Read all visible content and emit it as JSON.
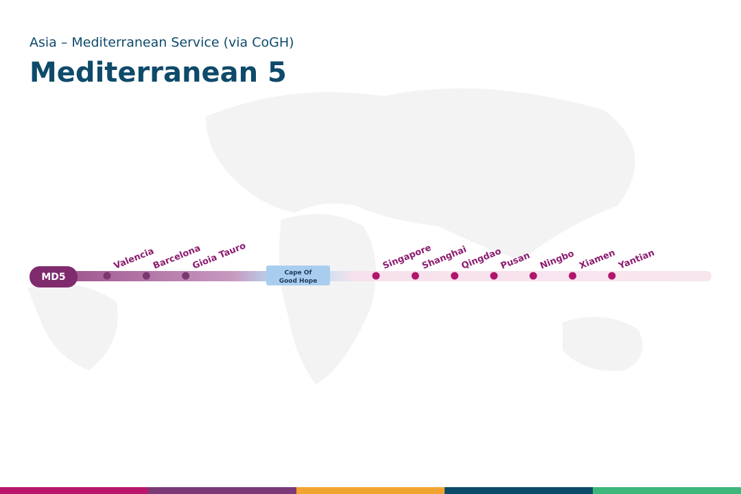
{
  "header": {
    "subtitle": "Asia – Mediterranean Service (via CoGH)",
    "title": "Mediterranean 5"
  },
  "route": {
    "badge": "MD5",
    "cape": [
      "Cape Of",
      "Good Hope"
    ],
    "western_ports": [
      "Valencia",
      "Barcelona",
      "Gioia Tauro"
    ],
    "eastern_ports": [
      "Singapore",
      "Shanghai",
      "Qingdao",
      "Pusan",
      "Ningbo",
      "Xiamen",
      "Yantian"
    ]
  }
}
